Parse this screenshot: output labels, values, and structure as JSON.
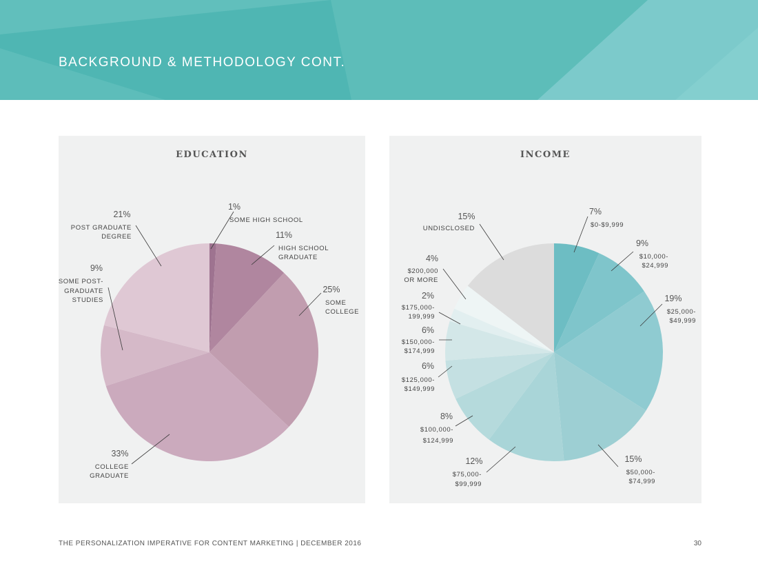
{
  "header": {
    "title": "BACKGROUND & METHODOLOGY CONT.",
    "colors": {
      "base": "#5dbdb9",
      "dark": "#4fb6b3",
      "light": "#7ccacb"
    }
  },
  "chart_data": [
    {
      "type": "pie",
      "title": "EDUCATION",
      "categories": [
        "SOME HIGH SCHOOL",
        "HIGH SCHOOL GRADUATE",
        "SOME COLLEGE",
        "COLLEGE GRADUATE",
        "SOME POST-GRADUATE STUDIES",
        "POST GRADUATE DEGREE"
      ],
      "values": [
        1,
        11,
        25,
        33,
        9,
        21
      ],
      "value_labels": [
        "1%",
        "11%",
        "25%",
        "33%",
        "9%",
        "21%"
      ],
      "colors": [
        "#9e7390",
        "#b0869f",
        "#c19daf",
        "#cbaabd",
        "#d5b9c8",
        "#dfc8d4"
      ]
    },
    {
      "type": "pie",
      "title": "INCOME",
      "categories": [
        "$0-$9,999",
        "$10,000-$24,999",
        "$25,000-$49,999",
        "$50,000-$74,999",
        "$75,000-$99,999",
        "$100,000-$124,999",
        "$125,000-$149,999",
        "$150,000-$174,999",
        "$175,000-199,999",
        "$200,000 OR MORE",
        "UNDISCLOSED"
      ],
      "values": [
        7,
        9,
        19,
        15,
        12,
        8,
        6,
        6,
        2,
        4,
        15
      ],
      "value_labels": [
        "7%",
        "9%",
        "19%",
        "15%",
        "12%",
        "8%",
        "6%",
        "6%",
        "2%",
        "4%",
        "15%"
      ],
      "colors": [
        "#6dbdc3",
        "#7fc5cb",
        "#8fcbd1",
        "#9dcfd3",
        "#a9d5d8",
        "#b5dadc",
        "#c4e0e2",
        "#d3e7e8",
        "#e2eff0",
        "#eef5f5",
        "#dcdcdc"
      ]
    }
  ],
  "label_text": {
    "education": [
      [
        "SOME HIGH SCHOOL"
      ],
      [
        "HIGH SCHOOL",
        "GRADUATE"
      ],
      [
        "SOME",
        "COLLEGE"
      ],
      [
        "COLLEGE",
        "GRADUATE"
      ],
      [
        "SOME POST-",
        "GRADUATE",
        "STUDIES"
      ],
      [
        "POST GRADUATE",
        "DEGREE"
      ]
    ],
    "income": [
      [
        "$0-$9,999"
      ],
      [
        "$10,000-",
        "$24,999"
      ],
      [
        "$25,000-",
        "$49,999"
      ],
      [
        "$50,000-",
        "$74,999"
      ],
      [
        "$75,000-",
        "$99,999"
      ],
      [
        "$100,000-",
        "$124,999"
      ],
      [
        "$125,000-",
        "$149,999"
      ],
      [
        "$150,000-",
        "$174,999"
      ],
      [
        "$175,000-",
        "199,999"
      ],
      [
        "$200,000",
        "OR MORE"
      ],
      [
        "UNDISCLOSED"
      ]
    ]
  },
  "footer": {
    "text": "THE PERSONALIZATION IMPERATIVE FOR CONTENT MARKETING | DECEMBER 2016",
    "page_number": "30"
  }
}
